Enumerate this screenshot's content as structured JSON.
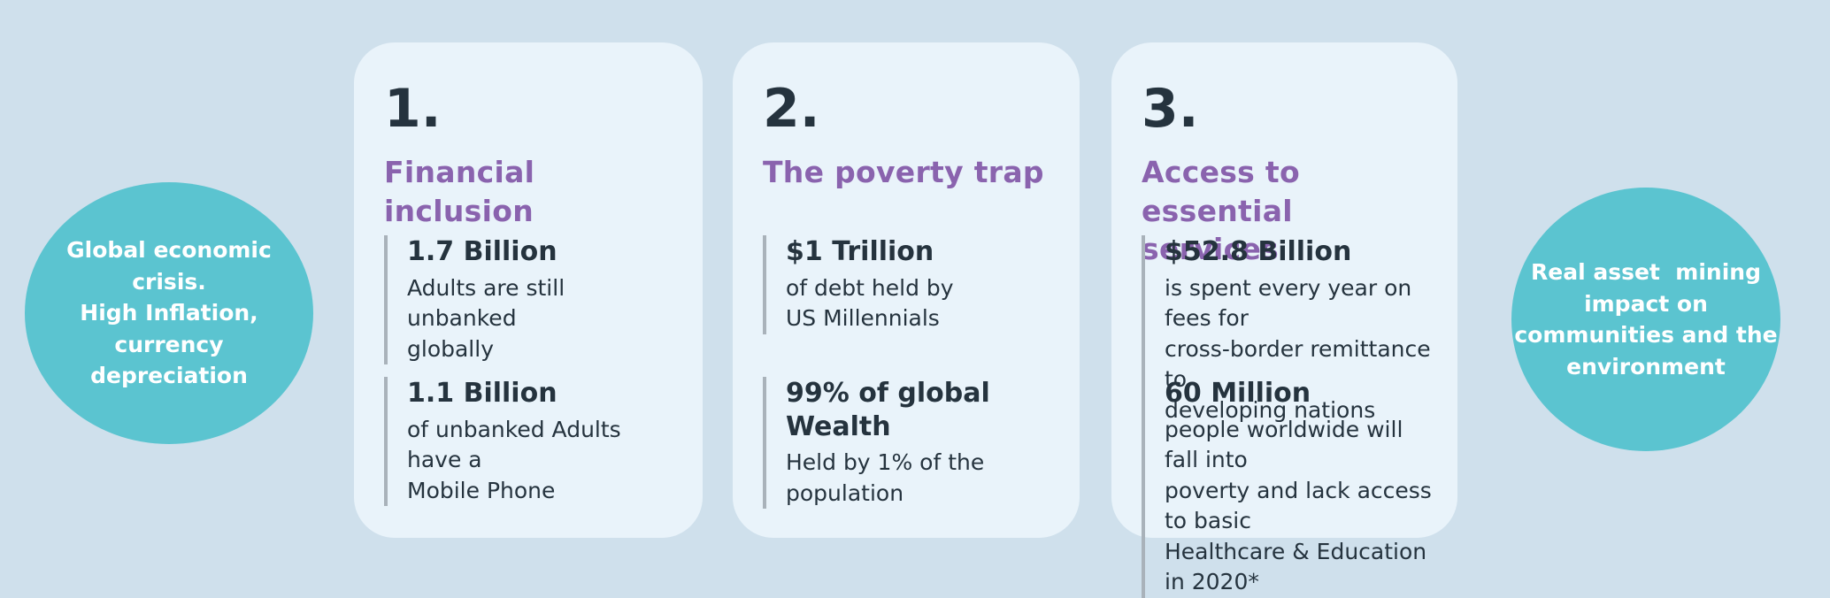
{
  "colors": {
    "page_bg": "#cfe0ec",
    "card_bg": "#e9f3fa",
    "circle_bg": "#5bc4d0",
    "heading_purple": "#8a63ae",
    "text_dark": "#25333e",
    "bar_gray": "#a9b2ba",
    "circle_text": "#ffffff"
  },
  "left_circle": {
    "text": "Global economic\ncrisis.\nHigh Inflation,\ncurrency\ndepreciation"
  },
  "right_circle": {
    "text": "Real asset  mining\nimpact on\ncommunities and the\nenvironment"
  },
  "cards": [
    {
      "number": "1.",
      "title": "Financial inclusion",
      "stats": [
        {
          "value": "1.7 Billion",
          "description": "Adults are still unbanked\nglobally"
        },
        {
          "value": "1.1 Billion",
          "description": "of unbanked Adults have a\nMobile Phone"
        }
      ]
    },
    {
      "number": "2.",
      "title": "The poverty trap",
      "stats": [
        {
          "value": "$1 Trillion",
          "description": "of debt held by\nUS Millennials"
        },
        {
          "value": "99% of global Wealth",
          "description": "Held by 1% of the\npopulation"
        }
      ]
    },
    {
      "number": "3.",
      "title": "Access to essential\nservices",
      "stats": [
        {
          "value": "$52.8 Billion",
          "description": "is spent every year on fees for\ncross-border remittance to\ndeveloping nations"
        },
        {
          "value": "60 Million",
          "description": "people worldwide will fall into\npoverty and lack access to basic\nHealthcare & Education in 2020*"
        }
      ]
    }
  ]
}
